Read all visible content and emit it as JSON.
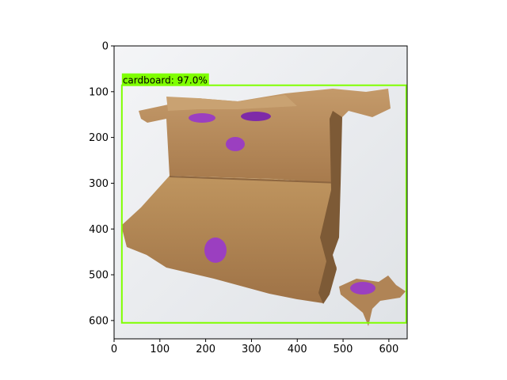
{
  "detection": {
    "label": "cardboard: 97.0%",
    "box": {
      "x0": 17,
      "y0": 86,
      "x1": 638,
      "y1": 605
    },
    "color": "#7fff00"
  },
  "axes": {
    "xlim": [
      0,
      640
    ],
    "ylim": [
      640,
      0
    ],
    "xticks": [
      0,
      100,
      200,
      300,
      400,
      500,
      600
    ],
    "yticks": [
      0,
      100,
      200,
      300,
      400,
      500,
      600
    ],
    "xtick_labels": [
      "0",
      "100",
      "200",
      "300",
      "400",
      "500",
      "600"
    ],
    "ytick_labels": [
      "0",
      "100",
      "200",
      "300",
      "400",
      "500",
      "600"
    ]
  },
  "photo": {
    "subject": "torn flattened cardboard box with purple lining showing through holes",
    "background_color": "#eef0f2",
    "cardboard_color": "#b98d5f",
    "lining_color": "#9b3fc0"
  }
}
